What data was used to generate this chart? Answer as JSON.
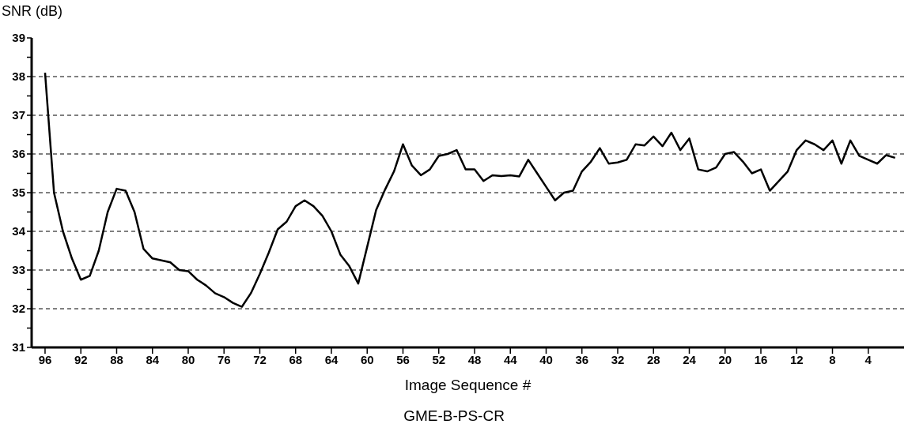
{
  "chart_data": {
    "type": "line",
    "ylabel": "SNR (dB)",
    "xlabel": "Image Sequence #",
    "annotations": [
      "GME-B-PS-CR"
    ],
    "x": [
      96,
      95,
      94,
      93,
      92,
      91,
      90,
      89,
      88,
      87,
      86,
      85,
      84,
      83,
      82,
      81,
      80,
      79,
      78,
      77,
      76,
      75,
      74,
      73,
      72,
      71,
      70,
      69,
      68,
      67,
      66,
      65,
      64,
      63,
      62,
      61,
      60,
      59,
      58,
      57,
      56,
      55,
      54,
      53,
      52,
      51,
      50,
      49,
      48,
      47,
      46,
      45,
      44,
      43,
      42,
      41,
      40,
      39,
      38,
      37,
      36,
      35,
      34,
      33,
      32,
      31,
      30,
      29,
      28,
      27,
      26,
      25,
      24,
      23,
      22,
      21,
      20,
      19,
      18,
      17,
      16,
      15,
      14,
      13,
      12,
      11,
      10,
      9,
      8,
      7,
      6,
      5,
      4,
      3,
      2,
      1
    ],
    "series": [
      {
        "color": "#000000",
        "values": [
          38.1,
          35.0,
          34.0,
          33.3,
          32.75,
          32.85,
          33.5,
          34.5,
          35.1,
          35.05,
          34.5,
          33.55,
          33.3,
          33.25,
          33.2,
          33.0,
          32.97,
          32.75,
          32.6,
          32.4,
          32.3,
          32.15,
          32.05,
          32.4,
          32.9,
          33.45,
          34.05,
          34.25,
          34.65,
          34.8,
          34.65,
          34.4,
          34.0,
          33.4,
          33.1,
          32.65,
          33.6,
          34.55,
          35.08,
          35.55,
          36.25,
          35.7,
          35.45,
          35.6,
          35.95,
          36.0,
          36.1,
          35.6,
          35.6,
          35.3,
          35.45,
          35.43,
          35.45,
          35.42,
          35.85,
          35.5,
          35.15,
          34.8,
          35.0,
          35.05,
          35.55,
          35.8,
          36.15,
          35.75,
          35.78,
          35.85,
          36.25,
          36.22,
          36.45,
          36.2,
          36.55,
          36.1,
          36.4,
          35.6,
          35.55,
          35.65,
          36.0,
          36.05,
          35.8,
          35.5,
          35.6,
          35.05,
          35.3,
          35.55,
          36.1,
          36.35,
          36.25,
          36.1,
          36.35,
          35.75,
          36.35,
          35.95,
          35.85,
          35.75,
          35.97,
          35.9
        ]
      }
    ],
    "xlim": [
      97.5,
      0
    ],
    "xticks": [
      96,
      92,
      88,
      84,
      80,
      76,
      72,
      68,
      64,
      60,
      56,
      52,
      48,
      44,
      40,
      36,
      32,
      28,
      24,
      20,
      16,
      12,
      8,
      4
    ],
    "ylim": [
      31,
      39
    ],
    "yticks": [
      31,
      {
        "value": 31.5,
        "label": null
      },
      32,
      {
        "value": 32.5,
        "label": null
      },
      33,
      {
        "value": 33.5,
        "label": null
      },
      34,
      {
        "value": 34.5,
        "label": null
      },
      35,
      {
        "value": 35.5,
        "label": null
      },
      36,
      {
        "value": 36.5,
        "label": null
      },
      37,
      {
        "value": 37.5,
        "label": null
      },
      38,
      {
        "value": 38.5,
        "label": null
      },
      39
    ],
    "grid": "y",
    "line_style": "solid",
    "marker": "none",
    "legend": false
  }
}
